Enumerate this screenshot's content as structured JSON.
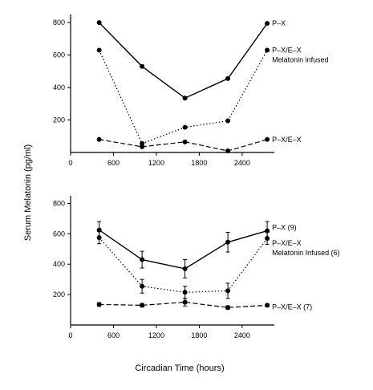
{
  "ylabel": "Serum Melatonin (pg/ml)",
  "xlabel": "Circadian Time (hours)",
  "chart_data": [
    {
      "type": "line",
      "panel": "top",
      "x": [
        400,
        1000,
        1600,
        2200,
        2750
      ],
      "xlim": [
        0,
        2850
      ],
      "ylim": [
        0,
        850
      ],
      "x_ticks": [
        {
          "value": 0,
          "label": "0"
        },
        {
          "value": 600,
          "label": "600"
        },
        {
          "value": 1200,
          "label": "1200"
        },
        {
          "value": 1800,
          "label": "1800"
        },
        {
          "value": 2400,
          "label": "2400"
        }
      ],
      "y_ticks": [
        {
          "value": 200,
          "label": "200"
        },
        {
          "value": 400,
          "label": "400"
        },
        {
          "value": 600,
          "label": "600"
        },
        {
          "value": 800,
          "label": "800"
        }
      ],
      "series": [
        {
          "label_lines": [
            "P–X"
          ],
          "style": "solid",
          "values": [
            800,
            530,
            335,
            455,
            795
          ]
        },
        {
          "label_lines": [
            "P–X/E–X",
            "Melatonin infused"
          ],
          "style": "dotted",
          "values": [
            630,
            55,
            155,
            195,
            630
          ]
        },
        {
          "label_lines": [
            "P–X/E–X"
          ],
          "style": "dashed",
          "values": [
            80,
            35,
            65,
            10,
            80
          ]
        }
      ]
    },
    {
      "type": "line",
      "panel": "bottom",
      "x": [
        400,
        1000,
        1600,
        2200,
        2750
      ],
      "xlim": [
        0,
        2850
      ],
      "ylim": [
        0,
        850
      ],
      "x_ticks": [
        {
          "value": 0,
          "label": "0"
        },
        {
          "value": 600,
          "label": "600"
        },
        {
          "value": 1200,
          "label": "1200"
        },
        {
          "value": 1800,
          "label": "1800"
        },
        {
          "value": 2400,
          "label": "2400"
        }
      ],
      "y_ticks": [
        {
          "value": 200,
          "label": "200"
        },
        {
          "value": 400,
          "label": "400"
        },
        {
          "value": 600,
          "label": "600"
        },
        {
          "value": 800,
          "label": "800"
        }
      ],
      "series": [
        {
          "label_lines": [
            "P–X (9)"
          ],
          "style": "solid",
          "values": [
            625,
            430,
            370,
            545,
            620
          ],
          "errors": [
            55,
            55,
            60,
            65,
            60
          ]
        },
        {
          "label_lines": [
            "P–X/E–X",
            "Melatonin Infused (6)"
          ],
          "style": "dotted",
          "values": [
            575,
            255,
            215,
            225,
            570
          ],
          "errors": [
            40,
            45,
            40,
            50,
            40
          ]
        },
        {
          "label_lines": [
            "P–X/E–X (7)"
          ],
          "style": "dashed",
          "values": [
            135,
            130,
            150,
            115,
            130
          ],
          "errors": [
            12,
            12,
            25,
            12,
            10
          ]
        }
      ]
    }
  ]
}
